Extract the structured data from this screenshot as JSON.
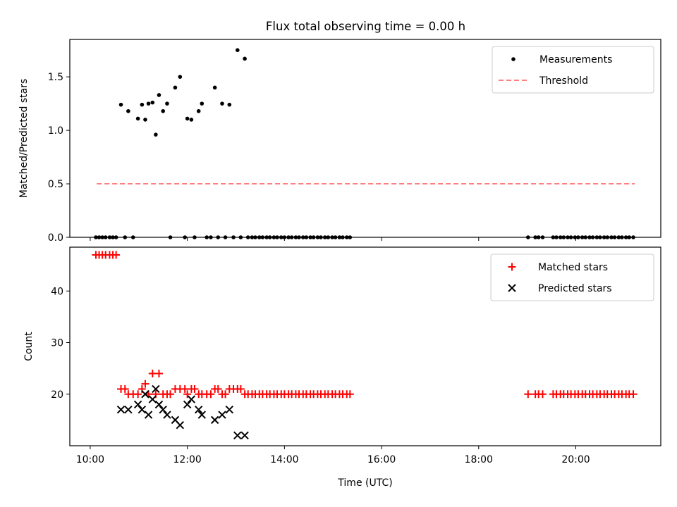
{
  "title": "Flux total observing time = 0.00 h",
  "chart_data": [
    {
      "type": "scatter",
      "ylabel": "Matched/Predicted stars",
      "ylim": [
        0,
        1.85
      ],
      "xlim_hours": [
        9.58,
        21.75
      ],
      "yticks": [
        {
          "v": 0.0,
          "label": "0.0"
        },
        {
          "v": 0.5,
          "label": "0.5"
        },
        {
          "v": 1.0,
          "label": "1.0"
        },
        {
          "v": 1.5,
          "label": "1.5"
        }
      ],
      "legend": {
        "position": "top-right",
        "measurements": "Measurements",
        "threshold": "Threshold"
      },
      "threshold": {
        "value": 0.5,
        "x_start": "10:08",
        "x_end": "21:13",
        "color": "#ff7f7f"
      },
      "series": [
        {
          "name": "Measurements",
          "color": "#000000",
          "points": [
            {
              "x": "10:07",
              "y": 0
            },
            {
              "x": "10:11",
              "y": 0
            },
            {
              "x": "10:15",
              "y": 0
            },
            {
              "x": "10:19",
              "y": 0
            },
            {
              "x": "10:24",
              "y": 0
            },
            {
              "x": "10:28",
              "y": 0
            },
            {
              "x": "10:32",
              "y": 0
            },
            {
              "x": "10:38",
              "y": 1.24
            },
            {
              "x": "10:43",
              "y": 0
            },
            {
              "x": "10:47",
              "y": 1.18
            },
            {
              "x": "10:53",
              "y": 0
            },
            {
              "x": "10:59",
              "y": 1.11
            },
            {
              "x": "11:04",
              "y": 1.24
            },
            {
              "x": "11:08",
              "y": 1.1
            },
            {
              "x": "11:12",
              "y": 1.25
            },
            {
              "x": "11:17",
              "y": 1.26
            },
            {
              "x": "11:21",
              "y": 0.96
            },
            {
              "x": "11:25",
              "y": 1.33
            },
            {
              "x": "11:30",
              "y": 1.18
            },
            {
              "x": "11:35",
              "y": 1.25
            },
            {
              "x": "11:39",
              "y": 0
            },
            {
              "x": "11:45",
              "y": 1.4
            },
            {
              "x": "11:51",
              "y": 1.5
            },
            {
              "x": "11:57",
              "y": 0
            },
            {
              "x": "12:00",
              "y": 1.11
            },
            {
              "x": "12:05",
              "y": 1.1
            },
            {
              "x": "12:09",
              "y": 0
            },
            {
              "x": "12:14",
              "y": 1.18
            },
            {
              "x": "12:18",
              "y": 1.25
            },
            {
              "x": "12:24",
              "y": 0
            },
            {
              "x": "12:29",
              "y": 0
            },
            {
              "x": "12:34",
              "y": 1.4
            },
            {
              "x": "12:38",
              "y": 0
            },
            {
              "x": "12:43",
              "y": 1.25
            },
            {
              "x": "12:47",
              "y": 0
            },
            {
              "x": "12:52",
              "y": 1.24
            },
            {
              "x": "12:57",
              "y": 0
            },
            {
              "x": "13:02",
              "y": 1.75
            },
            {
              "x": "13:06",
              "y": 0
            },
            {
              "x": "13:11",
              "y": 1.67
            },
            {
              "x": "13:15",
              "y": 0
            },
            {
              "x": "13:20",
              "y": 0
            },
            {
              "x": "13:24",
              "y": 0
            },
            {
              "x": "13:29",
              "y": 0
            },
            {
              "x": "13:33",
              "y": 0
            },
            {
              "x": "13:38",
              "y": 0
            },
            {
              "x": "13:42",
              "y": 0
            },
            {
              "x": "13:47",
              "y": 0
            },
            {
              "x": "13:51",
              "y": 0
            },
            {
              "x": "13:56",
              "y": 0
            },
            {
              "x": "14:00",
              "y": 0
            },
            {
              "x": "14:05",
              "y": 0
            },
            {
              "x": "14:09",
              "y": 0
            },
            {
              "x": "14:14",
              "y": 0
            },
            {
              "x": "14:18",
              "y": 0
            },
            {
              "x": "14:23",
              "y": 0
            },
            {
              "x": "14:27",
              "y": 0
            },
            {
              "x": "14:32",
              "y": 0
            },
            {
              "x": "14:36",
              "y": 0
            },
            {
              "x": "14:41",
              "y": 0
            },
            {
              "x": "14:45",
              "y": 0
            },
            {
              "x": "14:50",
              "y": 0
            },
            {
              "x": "14:54",
              "y": 0
            },
            {
              "x": "14:59",
              "y": 0
            },
            {
              "x": "15:03",
              "y": 0
            },
            {
              "x": "15:08",
              "y": 0
            },
            {
              "x": "15:12",
              "y": 0
            },
            {
              "x": "15:17",
              "y": 0
            },
            {
              "x": "15:21",
              "y": 0
            },
            {
              "x": "19:01",
              "y": 0
            },
            {
              "x": "19:10",
              "y": 0
            },
            {
              "x": "19:14",
              "y": 0
            },
            {
              "x": "19:19",
              "y": 0
            },
            {
              "x": "19:32",
              "y": 0
            },
            {
              "x": "19:36",
              "y": 0
            },
            {
              "x": "19:41",
              "y": 0
            },
            {
              "x": "19:45",
              "y": 0
            },
            {
              "x": "19:50",
              "y": 0
            },
            {
              "x": "19:54",
              "y": 0
            },
            {
              "x": "19:59",
              "y": 0
            },
            {
              "x": "20:03",
              "y": 0
            },
            {
              "x": "20:08",
              "y": 0
            },
            {
              "x": "20:12",
              "y": 0
            },
            {
              "x": "20:17",
              "y": 0
            },
            {
              "x": "20:21",
              "y": 0
            },
            {
              "x": "20:26",
              "y": 0
            },
            {
              "x": "20:30",
              "y": 0
            },
            {
              "x": "20:35",
              "y": 0
            },
            {
              "x": "20:39",
              "y": 0
            },
            {
              "x": "20:44",
              "y": 0
            },
            {
              "x": "20:48",
              "y": 0
            },
            {
              "x": "20:53",
              "y": 0
            },
            {
              "x": "20:57",
              "y": 0
            },
            {
              "x": "21:02",
              "y": 0
            },
            {
              "x": "21:06",
              "y": 0
            },
            {
              "x": "21:11",
              "y": 0
            }
          ]
        }
      ]
    },
    {
      "type": "scatter",
      "xlabel": "Time (UTC)",
      "ylabel": "Count",
      "ylim": [
        10,
        48.5
      ],
      "xlim_hours": [
        9.58,
        21.75
      ],
      "xticks": [
        "10:00",
        "12:00",
        "14:00",
        "16:00",
        "18:00",
        "20:00"
      ],
      "yticks": [
        {
          "v": 20,
          "label": "20"
        },
        {
          "v": 30,
          "label": "30"
        },
        {
          "v": 40,
          "label": "40"
        }
      ],
      "legend": {
        "position": "top-right",
        "matched": "Matched stars",
        "predicted": "Predicted stars"
      },
      "series": [
        {
          "name": "Matched stars",
          "color": "#ff0000",
          "marker": "plus",
          "points": [
            {
              "x": "10:07",
              "y": 47
            },
            {
              "x": "10:11",
              "y": 47
            },
            {
              "x": "10:15",
              "y": 47
            },
            {
              "x": "10:19",
              "y": 47
            },
            {
              "x": "10:24",
              "y": 47
            },
            {
              "x": "10:28",
              "y": 47
            },
            {
              "x": "10:32",
              "y": 47
            },
            {
              "x": "10:38",
              "y": 21
            },
            {
              "x": "10:43",
              "y": 21
            },
            {
              "x": "10:47",
              "y": 20
            },
            {
              "x": "10:53",
              "y": 20
            },
            {
              "x": "10:59",
              "y": 20
            },
            {
              "x": "11:04",
              "y": 21
            },
            {
              "x": "11:08",
              "y": 22
            },
            {
              "x": "11:12",
              "y": 20
            },
            {
              "x": "11:17",
              "y": 24
            },
            {
              "x": "11:21",
              "y": 20
            },
            {
              "x": "11:25",
              "y": 24
            },
            {
              "x": "11:30",
              "y": 20
            },
            {
              "x": "11:35",
              "y": 20
            },
            {
              "x": "11:39",
              "y": 20
            },
            {
              "x": "11:45",
              "y": 21
            },
            {
              "x": "11:51",
              "y": 21
            },
            {
              "x": "11:57",
              "y": 21
            },
            {
              "x": "12:00",
              "y": 20
            },
            {
              "x": "12:05",
              "y": 21
            },
            {
              "x": "12:09",
              "y": 21
            },
            {
              "x": "12:14",
              "y": 20
            },
            {
              "x": "12:18",
              "y": 20
            },
            {
              "x": "12:24",
              "y": 20
            },
            {
              "x": "12:29",
              "y": 20
            },
            {
              "x": "12:34",
              "y": 21
            },
            {
              "x": "12:38",
              "y": 21
            },
            {
              "x": "12:43",
              "y": 20
            },
            {
              "x": "12:47",
              "y": 20
            },
            {
              "x": "12:52",
              "y": 21
            },
            {
              "x": "12:57",
              "y": 21
            },
            {
              "x": "13:02",
              "y": 21
            },
            {
              "x": "13:06",
              "y": 21
            },
            {
              "x": "13:11",
              "y": 20
            },
            {
              "x": "13:15",
              "y": 20
            },
            {
              "x": "13:20",
              "y": 20
            },
            {
              "x": "13:24",
              "y": 20
            },
            {
              "x": "13:29",
              "y": 20
            },
            {
              "x": "13:33",
              "y": 20
            },
            {
              "x": "13:38",
              "y": 20
            },
            {
              "x": "13:42",
              "y": 20
            },
            {
              "x": "13:47",
              "y": 20
            },
            {
              "x": "13:51",
              "y": 20
            },
            {
              "x": "13:56",
              "y": 20
            },
            {
              "x": "14:00",
              "y": 20
            },
            {
              "x": "14:05",
              "y": 20
            },
            {
              "x": "14:09",
              "y": 20
            },
            {
              "x": "14:14",
              "y": 20
            },
            {
              "x": "14:18",
              "y": 20
            },
            {
              "x": "14:23",
              "y": 20
            },
            {
              "x": "14:27",
              "y": 20
            },
            {
              "x": "14:32",
              "y": 20
            },
            {
              "x": "14:36",
              "y": 20
            },
            {
              "x": "14:41",
              "y": 20
            },
            {
              "x": "14:45",
              "y": 20
            },
            {
              "x": "14:50",
              "y": 20
            },
            {
              "x": "14:54",
              "y": 20
            },
            {
              "x": "14:59",
              "y": 20
            },
            {
              "x": "15:03",
              "y": 20
            },
            {
              "x": "15:08",
              "y": 20
            },
            {
              "x": "15:12",
              "y": 20
            },
            {
              "x": "15:17",
              "y": 20
            },
            {
              "x": "15:21",
              "y": 20
            },
            {
              "x": "19:01",
              "y": 20
            },
            {
              "x": "19:10",
              "y": 20
            },
            {
              "x": "19:14",
              "y": 20
            },
            {
              "x": "19:19",
              "y": 20
            },
            {
              "x": "19:32",
              "y": 20
            },
            {
              "x": "19:36",
              "y": 20
            },
            {
              "x": "19:41",
              "y": 20
            },
            {
              "x": "19:45",
              "y": 20
            },
            {
              "x": "19:50",
              "y": 20
            },
            {
              "x": "19:54",
              "y": 20
            },
            {
              "x": "19:59",
              "y": 20
            },
            {
              "x": "20:03",
              "y": 20
            },
            {
              "x": "20:08",
              "y": 20
            },
            {
              "x": "20:12",
              "y": 20
            },
            {
              "x": "20:17",
              "y": 20
            },
            {
              "x": "20:21",
              "y": 20
            },
            {
              "x": "20:26",
              "y": 20
            },
            {
              "x": "20:30",
              "y": 20
            },
            {
              "x": "20:35",
              "y": 20
            },
            {
              "x": "20:39",
              "y": 20
            },
            {
              "x": "20:44",
              "y": 20
            },
            {
              "x": "20:48",
              "y": 20
            },
            {
              "x": "20:53",
              "y": 20
            },
            {
              "x": "20:57",
              "y": 20
            },
            {
              "x": "21:02",
              "y": 20
            },
            {
              "x": "21:06",
              "y": 20
            },
            {
              "x": "21:11",
              "y": 20
            }
          ]
        },
        {
          "name": "Predicted stars",
          "color": "#000000",
          "marker": "x",
          "points": [
            {
              "x": "10:38",
              "y": 17
            },
            {
              "x": "10:47",
              "y": 17
            },
            {
              "x": "10:59",
              "y": 18
            },
            {
              "x": "11:04",
              "y": 17
            },
            {
              "x": "11:08",
              "y": 20
            },
            {
              "x": "11:12",
              "y": 16
            },
            {
              "x": "11:17",
              "y": 19
            },
            {
              "x": "11:25",
              "y": 18
            },
            {
              "x": "11:30",
              "y": 17
            },
            {
              "x": "11:35",
              "y": 16
            },
            {
              "x": "11:45",
              "y": 15
            },
            {
              "x": "11:51",
              "y": 14
            },
            {
              "x": "12:00",
              "y": 18
            },
            {
              "x": "12:05",
              "y": 19
            },
            {
              "x": "12:14",
              "y": 17
            },
            {
              "x": "12:18",
              "y": 16
            },
            {
              "x": "12:34",
              "y": 15
            },
            {
              "x": "12:43",
              "y": 16
            },
            {
              "x": "12:52",
              "y": 17
            },
            {
              "x": "13:02",
              "y": 12
            },
            {
              "x": "13:11",
              "y": 12
            },
            {
              "x": "11:21",
              "y": 21
            }
          ]
        }
      ]
    }
  ]
}
